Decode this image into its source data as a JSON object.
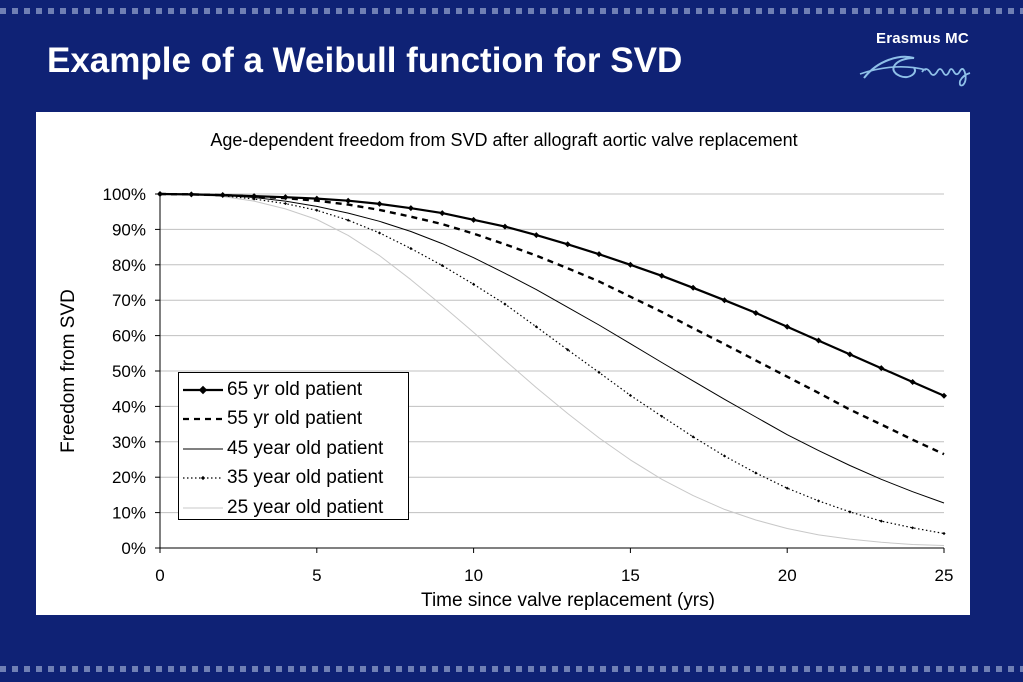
{
  "slide": {
    "title": "Example of a Weibull function for SVD",
    "logo_text": "Erasmus MC",
    "logo_script": "Ezafung"
  },
  "colors": {
    "background": "#0f2275",
    "accent": "#6f7fb4",
    "title_text": "#ffffff",
    "panel": "#ffffff"
  },
  "chart_data": {
    "type": "line",
    "title": "Age-dependent freedom from SVD after allograft aortic valve replacement",
    "xlabel": "Time since valve replacement (yrs)",
    "ylabel": "Freedom from SVD",
    "xlim": [
      0,
      25
    ],
    "ylim": [
      0,
      100
    ],
    "xticks": [
      "0",
      "5",
      "10",
      "15",
      "20",
      "25"
    ],
    "yticks": [
      "0%",
      "10%",
      "20%",
      "30%",
      "40%",
      "50%",
      "60%",
      "70%",
      "80%",
      "90%",
      "100%"
    ],
    "grid": true,
    "legend_position": "inside bottom-left",
    "x": [
      0,
      1,
      2,
      3,
      4,
      5,
      6,
      7,
      8,
      9,
      10,
      11,
      12,
      13,
      14,
      15,
      16,
      17,
      18,
      19,
      20,
      21,
      22,
      23,
      24,
      25
    ],
    "series": [
      {
        "name": "65 yr old patient",
        "style": "solid-bold-diamond",
        "values": [
          100,
          99.9,
          99.7,
          99.4,
          99.1,
          98.7,
          98.1,
          97.2,
          96.0,
          94.6,
          92.7,
          90.8,
          88.4,
          85.8,
          83.0,
          80.0,
          76.9,
          73.5,
          70.0,
          66.4,
          62.5,
          58.6,
          54.7,
          50.8,
          46.9,
          43.0
        ]
      },
      {
        "name": "55 yr old patient",
        "style": "dashed-bold",
        "values": [
          100,
          99.9,
          99.7,
          99.3,
          98.8,
          98.1,
          97.0,
          95.5,
          93.6,
          91.5,
          88.8,
          85.8,
          82.6,
          79.0,
          75.3,
          71.0,
          66.7,
          62.1,
          57.6,
          53.0,
          48.4,
          43.8,
          39.1,
          34.9,
          30.6,
          26.5
        ]
      },
      {
        "name": "45 year old patient",
        "style": "solid-thin",
        "values": [
          100,
          99.9,
          99.6,
          99.0,
          98.0,
          96.5,
          94.6,
          92.3,
          89.4,
          86.0,
          82.0,
          77.6,
          73.0,
          68.0,
          63.0,
          57.7,
          52.4,
          47.2,
          42.0,
          37.0,
          32.0,
          27.5,
          23.3,
          19.4,
          15.9,
          12.7
        ]
      },
      {
        "name": "35 year old patient",
        "style": "dotted-marker",
        "values": [
          100,
          99.9,
          99.5,
          98.6,
          97.3,
          95.4,
          92.6,
          89.0,
          84.6,
          79.8,
          74.5,
          68.9,
          62.5,
          56.0,
          49.6,
          43.1,
          37.2,
          31.4,
          26.0,
          21.2,
          16.9,
          13.3,
          10.2,
          7.6,
          5.7,
          4.1
        ]
      },
      {
        "name": "25 year old patient",
        "style": "solid-hairline-light",
        "values": [
          100,
          99.8,
          99.3,
          98.0,
          95.8,
          92.8,
          88.3,
          82.6,
          75.8,
          68.5,
          60.9,
          53.0,
          45.3,
          38.0,
          31.1,
          24.9,
          19.4,
          14.8,
          10.9,
          7.9,
          5.5,
          3.7,
          2.5,
          1.6,
          1.0,
          0.7
        ]
      }
    ]
  }
}
